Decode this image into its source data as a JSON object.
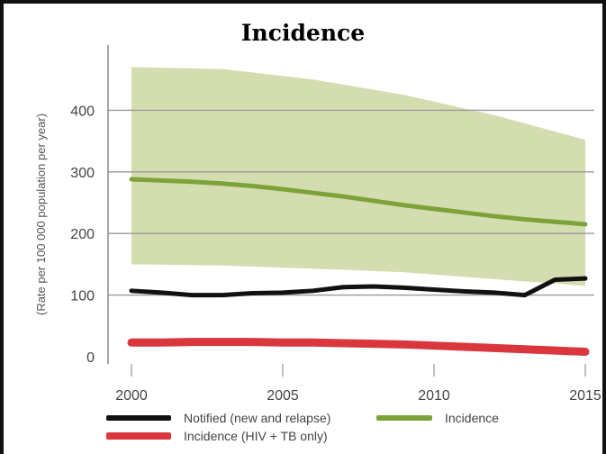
{
  "chart_data": {
    "type": "line",
    "title": "Incidence",
    "xlabel": "",
    "ylabel": "(Rate per 100 000 population per year)",
    "xlim": [
      2000,
      2015
    ],
    "ylim": [
      0,
      500
    ],
    "xticks": [
      "2000",
      "2005",
      "2010",
      "2015"
    ],
    "yticks": [
      "0",
      "100",
      "200",
      "300",
      "400"
    ],
    "grid": "horizontal",
    "legend_position": "bottom",
    "uncertainty_band": {
      "of": "Incidence",
      "x": [
        2000,
        2003,
        2006,
        2009,
        2012,
        2015
      ],
      "upper": [
        470,
        467,
        450,
        425,
        392,
        352
      ],
      "lower": [
        150,
        148,
        143,
        137,
        126,
        115
      ],
      "color": "#cfd9a6"
    },
    "series": [
      {
        "name": "Incidence",
        "color": "#7da23a",
        "x": [
          2000,
          2001,
          2002,
          2003,
          2004,
          2005,
          2006,
          2007,
          2008,
          2009,
          2010,
          2011,
          2012,
          2013,
          2014,
          2015
        ],
        "values": [
          288,
          286,
          284,
          281,
          277,
          272,
          266,
          260,
          253,
          246,
          240,
          234,
          228,
          223,
          219,
          215
        ]
      },
      {
        "name": "Notified (new and relapse)",
        "color": "#111111",
        "x": [
          2000,
          2001,
          2002,
          2003,
          2004,
          2005,
          2006,
          2007,
          2008,
          2009,
          2010,
          2011,
          2012,
          2013,
          2014,
          2015
        ],
        "values": [
          107,
          104,
          100,
          100,
          103,
          104,
          107,
          113,
          114,
          112,
          109,
          106,
          104,
          100,
          125,
          127
        ]
      },
      {
        "name": "Incidence (HIV + TB only)",
        "color": "#d9363e",
        "x": [
          2000,
          2001,
          2002,
          2003,
          2004,
          2005,
          2006,
          2007,
          2008,
          2009,
          2010,
          2011,
          2012,
          2013,
          2014,
          2015
        ],
        "values": [
          23,
          23,
          24,
          24,
          24,
          23,
          23,
          22,
          21,
          20,
          18,
          16,
          14,
          12,
          10,
          8
        ]
      }
    ]
  }
}
